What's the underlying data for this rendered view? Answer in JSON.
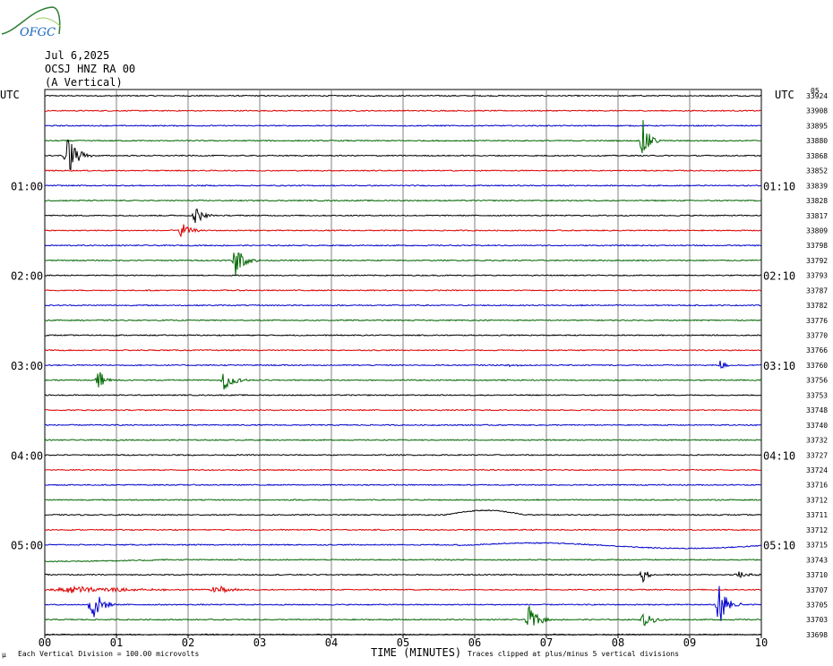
{
  "logo": {
    "text": "OFGC",
    "icon": "ofgc-mountain-logo"
  },
  "header": {
    "date": "Jul 6,2025",
    "station": "OCSJ HNZ RA 00",
    "component": "(A Vertical)"
  },
  "utc_left": "UTC",
  "utc_right": "UTC",
  "right_corner": "05",
  "footer": {
    "scale_prefix": "μ",
    "scale": "Each Vertical Division =  100.00 microvolts",
    "xlabel": "TIME (MINUTES)",
    "clip_note": "Traces clipped at plus/minus 5 vertical divisions"
  },
  "colors": {
    "trace_cycle": [
      "#000000",
      "#dd0000",
      "#0000cc",
      "#006600"
    ],
    "grid": "#808080"
  },
  "chart_data": {
    "type": "line",
    "title": "OCSJ HNZ RA 00",
    "xlabel": "TIME (MINUTES)",
    "ylabel": "UTC",
    "xlim": [
      0,
      10
    ],
    "x_ticks": [
      "00",
      "01",
      "02",
      "03",
      "04",
      "05",
      "06",
      "07",
      "08",
      "09",
      "10"
    ],
    "left_time_labels": [
      {
        "row": 6,
        "text": "01:00"
      },
      {
        "row": 12,
        "text": "02:00"
      },
      {
        "row": 18,
        "text": "03:00"
      },
      {
        "row": 24,
        "text": "04:00"
      },
      {
        "row": 30,
        "text": "05:00"
      }
    ],
    "right_time_labels": [
      {
        "row": 6,
        "text": "01:10"
      },
      {
        "row": 12,
        "text": "02:10"
      },
      {
        "row": 18,
        "text": "03:10"
      },
      {
        "row": 24,
        "text": "04:10"
      },
      {
        "row": 30,
        "text": "05:10"
      }
    ],
    "trace_right_values": [
      "33924",
      "33908",
      "33895",
      "33880",
      "33868",
      "33852",
      "33839",
      "33828",
      "33817",
      "33809",
      "33798",
      "33792",
      "33793",
      "33787",
      "33782",
      "33776",
      "33770",
      "33766",
      "33760",
      "33756",
      "33753",
      "33748",
      "33740",
      "33732",
      "33727",
      "33724",
      "33716",
      "33712",
      "33711",
      "33712",
      "33715",
      "33743",
      "33710",
      "33707",
      "33705",
      "33703",
      "33698"
    ],
    "events": [
      {
        "row": 3,
        "minute": 8.3,
        "amp": 24,
        "dur": 0.3
      },
      {
        "row": 4,
        "minute": 0.25,
        "amp": 26,
        "dur": 0.4
      },
      {
        "row": 8,
        "minute": 2.05,
        "amp": 10,
        "dur": 0.35
      },
      {
        "row": 9,
        "minute": 1.85,
        "amp": 10,
        "dur": 0.35
      },
      {
        "row": 11,
        "minute": 2.6,
        "amp": 18,
        "dur": 0.4
      },
      {
        "row": 18,
        "minute": 6.45,
        "amp": 3,
        "dur": 0.3
      },
      {
        "row": 18,
        "minute": 9.4,
        "amp": 8,
        "dur": 0.2
      },
      {
        "row": 19,
        "minute": 0.7,
        "amp": 11,
        "dur": 0.35
      },
      {
        "row": 19,
        "minute": 2.45,
        "amp": 12,
        "dur": 0.4
      },
      {
        "row": 32,
        "minute": 8.3,
        "amp": 10,
        "dur": 0.25
      },
      {
        "row": 32,
        "minute": 9.6,
        "amp": 5,
        "dur": 0.5
      },
      {
        "row": 33,
        "minute": 0.0,
        "amp": 4,
        "dur": 2.5
      },
      {
        "row": 33,
        "minute": 2.3,
        "amp": 7,
        "dur": 0.5
      },
      {
        "row": 34,
        "minute": 0.6,
        "amp": 22,
        "dur": 0.4
      },
      {
        "row": 34,
        "minute": 9.35,
        "amp": 24,
        "dur": 0.4
      },
      {
        "row": 35,
        "minute": 6.7,
        "amp": 16,
        "dur": 0.4
      },
      {
        "row": 35,
        "minute": 8.3,
        "amp": 8,
        "dur": 0.45
      }
    ]
  }
}
